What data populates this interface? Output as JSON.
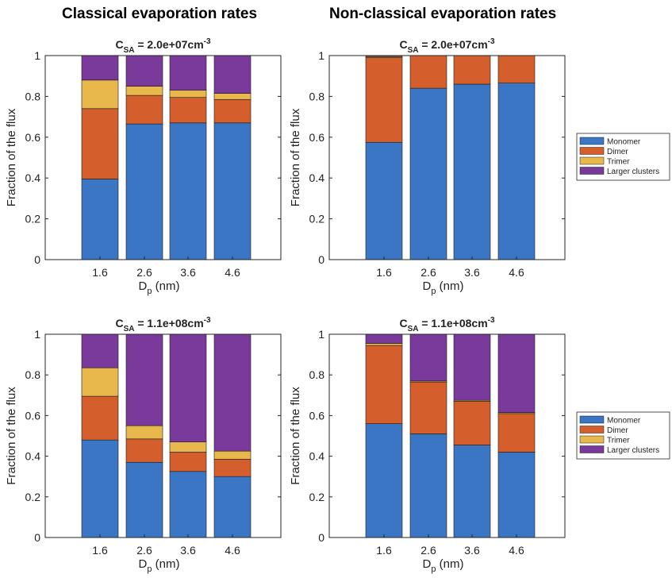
{
  "column_titles": [
    "Classical evaporation rates",
    "Non-classical evaporation rates"
  ],
  "legend_labels": [
    "Monomer",
    "Dimer",
    "Trimer",
    "Larger clusters"
  ],
  "colors": {
    "Monomer": "#3a76c4",
    "Dimer": "#d45f2c",
    "Trimer": "#e8b84d",
    "Larger clusters": "#7a3a9c"
  },
  "chart_data": [
    {
      "type": "bar",
      "stacked": true,
      "title": "C_SA = 2.0e+07cm^-3",
      "title_parts": {
        "main": "C",
        "sub": "SA",
        "mid": " = 2.0e+07cm",
        "sup": "-3"
      },
      "xlabel": {
        "main": "D",
        "sub": "p",
        "rest": " (nm)"
      },
      "ylabel": "Fraction of the flux",
      "categories": [
        "1.6",
        "2.6",
        "3.6",
        "4.6"
      ],
      "ylim": [
        0,
        1
      ],
      "yticks": [
        "0",
        "0.2",
        "0.4",
        "0.6",
        "0.8",
        "1"
      ],
      "legend": "none",
      "series": [
        {
          "name": "Monomer",
          "values": [
            0.395,
            0.665,
            0.67,
            0.67
          ]
        },
        {
          "name": "Dimer",
          "values": [
            0.345,
            0.14,
            0.125,
            0.115
          ]
        },
        {
          "name": "Trimer",
          "values": [
            0.14,
            0.045,
            0.035,
            0.03
          ]
        },
        {
          "name": "Larger clusters",
          "values": [
            0.12,
            0.15,
            0.17,
            0.185
          ]
        }
      ]
    },
    {
      "type": "bar",
      "stacked": true,
      "title": "C_SA = 2.0e+07cm^-3",
      "title_parts": {
        "main": "C",
        "sub": "SA",
        "mid": " = 2.0e+07cm",
        "sup": "-3"
      },
      "xlabel": {
        "main": "D",
        "sub": "p",
        "rest": " (nm)"
      },
      "ylabel": "Fraction of the flux",
      "categories": [
        "1.6",
        "2.6",
        "3.6",
        "4.6"
      ],
      "ylim": [
        0,
        1
      ],
      "yticks": [
        "0",
        "0.2",
        "0.4",
        "0.6",
        "0.8",
        "1"
      ],
      "legend": "right",
      "series": [
        {
          "name": "Monomer",
          "values": [
            0.575,
            0.84,
            0.86,
            0.865
          ]
        },
        {
          "name": "Dimer",
          "values": [
            0.415,
            0.16,
            0.14,
            0.135
          ]
        },
        {
          "name": "Trimer",
          "values": [
            0.005,
            0.0,
            0.0,
            0.0
          ]
        },
        {
          "name": "Larger clusters",
          "values": [
            0.005,
            0.0,
            0.0,
            0.0
          ]
        }
      ]
    },
    {
      "type": "bar",
      "stacked": true,
      "title": "C_SA = 1.1e+08cm^-3",
      "title_parts": {
        "main": "C",
        "sub": "SA",
        "mid": " = 1.1e+08cm",
        "sup": "-3"
      },
      "xlabel": {
        "main": "D",
        "sub": "p",
        "rest": " (nm)"
      },
      "ylabel": "Fraction of the flux",
      "categories": [
        "1.6",
        "2.6",
        "3.6",
        "4.6"
      ],
      "ylim": [
        0,
        1
      ],
      "yticks": [
        "0",
        "0.2",
        "0.4",
        "0.6",
        "0.8",
        "1"
      ],
      "legend": "none",
      "series": [
        {
          "name": "Monomer",
          "values": [
            0.48,
            0.37,
            0.325,
            0.3
          ]
        },
        {
          "name": "Dimer",
          "values": [
            0.215,
            0.115,
            0.095,
            0.085
          ]
        },
        {
          "name": "Trimer",
          "values": [
            0.14,
            0.065,
            0.05,
            0.04
          ]
        },
        {
          "name": "Larger clusters",
          "values": [
            0.165,
            0.45,
            0.53,
            0.575
          ]
        }
      ]
    },
    {
      "type": "bar",
      "stacked": true,
      "title": "C_SA = 1.1e+08cm^-3",
      "title_parts": {
        "main": "C",
        "sub": "SA",
        "mid": " = 1.1e+08cm",
        "sup": "-3"
      },
      "xlabel": {
        "main": "D",
        "sub": "p",
        "rest": " (nm)"
      },
      "ylabel": "Fraction of the flux",
      "categories": [
        "1.6",
        "2.6",
        "3.6",
        "4.6"
      ],
      "ylim": [
        0,
        1
      ],
      "yticks": [
        "0",
        "0.2",
        "0.4",
        "0.6",
        "0.8",
        "1"
      ],
      "legend": "right",
      "series": [
        {
          "name": "Monomer",
          "values": [
            0.56,
            0.51,
            0.455,
            0.42
          ]
        },
        {
          "name": "Dimer",
          "values": [
            0.385,
            0.255,
            0.215,
            0.19
          ]
        },
        {
          "name": "Trimer",
          "values": [
            0.01,
            0.005,
            0.005,
            0.005
          ]
        },
        {
          "name": "Larger clusters",
          "values": [
            0.045,
            0.23,
            0.325,
            0.385
          ]
        }
      ]
    }
  ]
}
